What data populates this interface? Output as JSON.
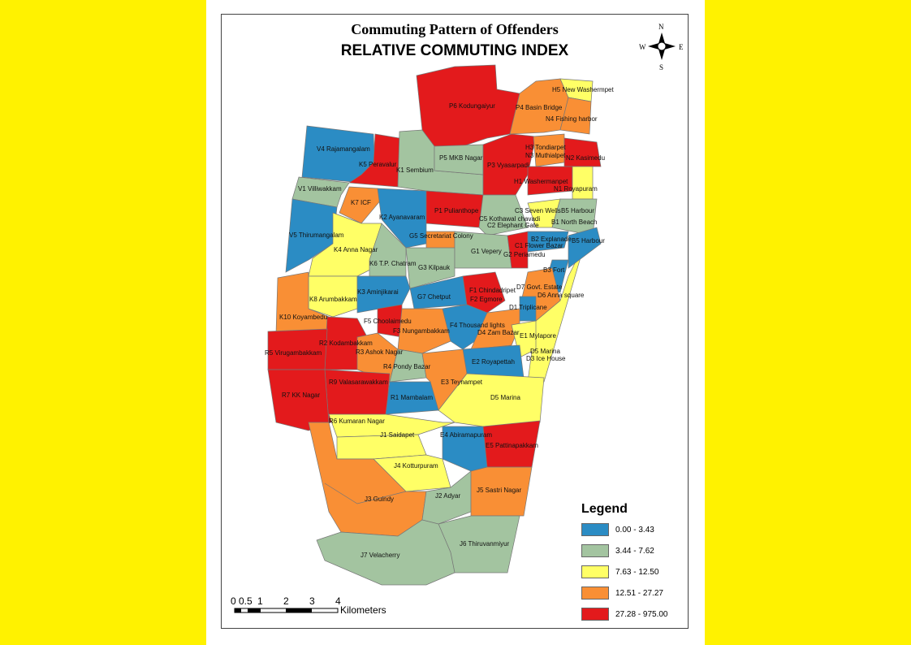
{
  "title": "Commuting Pattern of Offenders",
  "subtitle": "RELATIVE COMMUTING INDEX",
  "north_arrow": {
    "n": "N",
    "s": "S",
    "e": "E",
    "w": "W"
  },
  "colors": {
    "blue": "#2b8cc4",
    "green": "#a3c4a0",
    "yellow": "#ffff66",
    "orange": "#f98f35",
    "red": "#e31a1c"
  },
  "legend": {
    "title": "Legend",
    "classes": [
      {
        "label": "0.00 - 3.43",
        "color": "#2b8cc4"
      },
      {
        "label": "3.44 - 7.62",
        "color": "#a3c4a0"
      },
      {
        "label": "7.63 - 12.50",
        "color": "#ffff66"
      },
      {
        "label": "12.51 - 27.27",
        "color": "#f98f35"
      },
      {
        "label": "27.28 - 975.00",
        "color": "#e31a1c"
      }
    ]
  },
  "scale_bar": {
    "ticks": [
      "0",
      "0.5",
      "1",
      "2",
      "3",
      "4"
    ],
    "unit": "Kilometers"
  },
  "zones": [
    {
      "label": "P6 Kodungaiyur",
      "class": 4
    },
    {
      "label": "P4 Basin Bridge",
      "class": 3
    },
    {
      "label": "H5 New Washermpet",
      "class": 2
    },
    {
      "label": "N4 Fishing harbor",
      "class": 3
    },
    {
      "label": "V4 Rajamangalam",
      "class": 0
    },
    {
      "label": "K5 Peravalur",
      "class": 4
    },
    {
      "label": "K1 Sembium",
      "class": 1
    },
    {
      "label": "P5 MKB Nagar",
      "class": 1
    },
    {
      "label": "P3 Vyasarpadi",
      "class": 4
    },
    {
      "label": "H3 Tondiarpet",
      "class": 3
    },
    {
      "label": "N3 Muthialpet",
      "class": 3
    },
    {
      "label": "N2 Kasimedu",
      "class": 4
    },
    {
      "label": "H1 Washermanpet",
      "class": 4
    },
    {
      "label": "N1 Royapuram",
      "class": 2
    },
    {
      "label": "V1 Villiwakkam",
      "class": 1
    },
    {
      "label": "K7 ICF",
      "class": 3
    },
    {
      "label": "K2 Ayanavaram",
      "class": 0
    },
    {
      "label": "P1 Pulianthope",
      "class": 4
    },
    {
      "label": "C5 Kothawal chavadi",
      "class": 1
    },
    {
      "label": "C2 Elephant Gate",
      "class": 1
    },
    {
      "label": "C3 Seven Wells",
      "class": 2
    },
    {
      "label": "B5 Harbour",
      "class": 1
    },
    {
      "label": "B1 North Beach",
      "class": 1
    },
    {
      "label": "V5 Thirumangalam",
      "class": 0
    },
    {
      "label": "K4 Anna Nagar",
      "class": 2
    },
    {
      "label": "G5 Secretariat Colony",
      "class": 3
    },
    {
      "label": "K6 T.P. Chatram",
      "class": 1
    },
    {
      "label": "G3 Kilpauk",
      "class": 1
    },
    {
      "label": "G1 Vepery",
      "class": 1
    },
    {
      "label": "C1 Flower Bazar",
      "class": 4
    },
    {
      "label": "G2 Periamedu",
      "class": 4
    },
    {
      "label": "B2 Explanade",
      "class": 0
    },
    {
      "label": "B5 Harbour",
      "class": 0
    },
    {
      "label": "B3 Fort",
      "class": 0
    },
    {
      "label": "K8 Arumbakkam",
      "class": 2
    },
    {
      "label": "K10 Koyambedu",
      "class": 3
    },
    {
      "label": "K3 Aminjikarai",
      "class": 0
    },
    {
      "label": "G7 Chetput",
      "class": 0
    },
    {
      "label": "F1 Chindadripet",
      "class": 4
    },
    {
      "label": "F2 Egmore",
      "class": 4
    },
    {
      "label": "D7 Govt. Estate",
      "class": 3
    },
    {
      "label": "D6 Anna square",
      "class": 3
    },
    {
      "label": "D1 Triplicane",
      "class": 0
    },
    {
      "label": "F5 Choolaimedu",
      "class": 4
    },
    {
      "label": "R2 Kodambakkam",
      "class": 4
    },
    {
      "label": "R5 Virugambakkam",
      "class": 4
    },
    {
      "label": "R3 Ashok Nagar",
      "class": 3
    },
    {
      "label": "F3 Nungambakkam",
      "class": 3
    },
    {
      "label": "R4 Pondy Bazar",
      "class": 1
    },
    {
      "label": "F4 Thousand lights",
      "class": 0
    },
    {
      "label": "D4 Zam Bazar",
      "class": 3
    },
    {
      "label": "E1 Mylapore",
      "class": 2
    },
    {
      "label": "D5 Marina",
      "class": 2
    },
    {
      "label": "D3 Ice House",
      "class": 2
    },
    {
      "label": "E2 Royapettah",
      "class": 0
    },
    {
      "label": "E3 Teynampet",
      "class": 3
    },
    {
      "label": "R9 Valasarawakkam",
      "class": 4
    },
    {
      "label": "R7 KK Nagar",
      "class": 4
    },
    {
      "label": "R1 Mambalam",
      "class": 0
    },
    {
      "label": "D5 Marina",
      "class": 2
    },
    {
      "label": "R6 Kumaran Nagar",
      "class": 2
    },
    {
      "label": "J1 Saidapet",
      "class": 2
    },
    {
      "label": "E4 Abiramapuram",
      "class": 0
    },
    {
      "label": "E5 Pattinapakkam",
      "class": 4
    },
    {
      "label": "J4 Kotturpuram",
      "class": 2
    },
    {
      "label": "J3 Guindy",
      "class": 3
    },
    {
      "label": "J2 Adyar",
      "class": 1
    },
    {
      "label": "J5 Sastri Nagar",
      "class": 3
    },
    {
      "label": "J6 Thiruvanmiyur",
      "class": 1
    },
    {
      "label": "J7 Velacherry",
      "class": 1
    }
  ]
}
